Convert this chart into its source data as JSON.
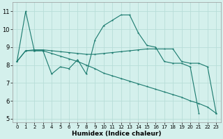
{
  "xlabel": "Humidex (Indice chaleur)",
  "background_color": "#d4f0ec",
  "grid_color": "#b8ddd8",
  "line_color": "#1a7a6e",
  "ylim": [
    4.8,
    11.5
  ],
  "xlim": [
    -0.5,
    23.5
  ],
  "yticks": [
    5,
    6,
    7,
    8,
    9,
    10,
    11
  ],
  "xticks": [
    0,
    1,
    2,
    3,
    4,
    5,
    6,
    7,
    8,
    9,
    10,
    11,
    12,
    13,
    14,
    15,
    16,
    17,
    18,
    19,
    20,
    21,
    22,
    23
  ],
  "series": [
    {
      "x": [
        0,
        1,
        2,
        3,
        4,
        5,
        6,
        7,
        8,
        9,
        10,
        11,
        12,
        13,
        14,
        15,
        16,
        17,
        18,
        19,
        20,
        21,
        22,
        23
      ],
      "y": [
        8.2,
        11.0,
        8.8,
        8.8,
        7.5,
        7.9,
        7.8,
        8.3,
        7.5,
        9.4,
        10.2,
        10.5,
        10.8,
        10.8,
        9.8,
        9.1,
        9.0,
        8.2,
        8.1,
        8.1,
        7.9,
        5.3,
        null,
        null
      ]
    },
    {
      "x": [
        0,
        1,
        2,
        3,
        4,
        5,
        6,
        7,
        8,
        9,
        10,
        11,
        12,
        13,
        14,
        15,
        16,
        17,
        18,
        19,
        20,
        21,
        22,
        23
      ],
      "y": [
        8.2,
        8.8,
        8.85,
        8.85,
        8.8,
        8.75,
        8.7,
        8.65,
        8.6,
        8.6,
        8.65,
        8.7,
        8.75,
        8.8,
        8.85,
        8.9,
        8.9,
        8.9,
        8.9,
        8.2,
        8.1,
        8.1,
        7.9,
        5.3
      ]
    },
    {
      "x": [
        0,
        1,
        2,
        3,
        4,
        5,
        6,
        7,
        8,
        9,
        10,
        11,
        12,
        13,
        14,
        15,
        16,
        17,
        18,
        19,
        20,
        21,
        22,
        23
      ],
      "y": [
        8.2,
        8.8,
        8.8,
        8.8,
        8.65,
        8.5,
        8.35,
        8.2,
        8.0,
        7.8,
        7.55,
        7.4,
        7.25,
        7.1,
        6.95,
        6.8,
        6.65,
        6.5,
        6.35,
        6.2,
        6.0,
        5.85,
        5.65,
        5.3
      ]
    }
  ]
}
